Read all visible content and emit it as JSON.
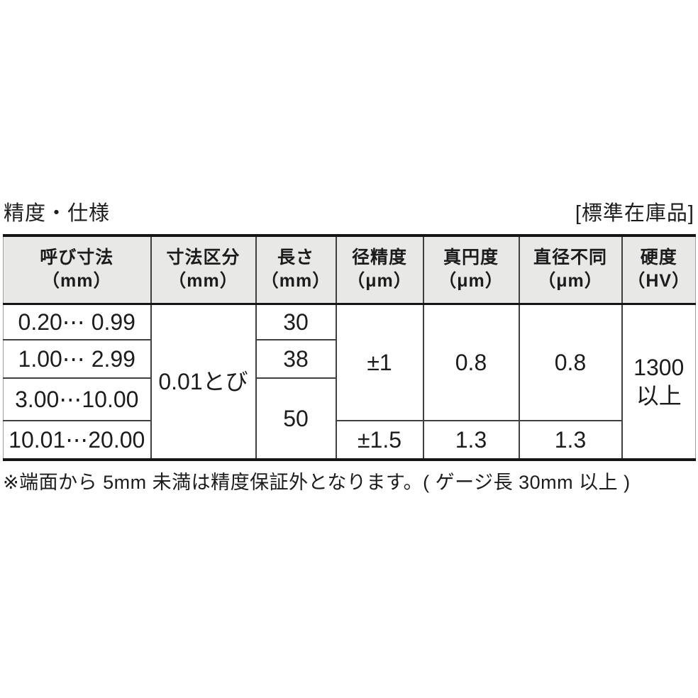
{
  "page": {
    "title": "精度・仕様",
    "stock_label": "[標準在庫品]",
    "footnote": "※端面から 5mm 未満は精度保証外となります。( ゲージ長 30mm 以上 )"
  },
  "table": {
    "columns": [
      {
        "title": "呼び寸法",
        "unit": "（mm）"
      },
      {
        "title": "寸法区分",
        "unit": "（mm）"
      },
      {
        "title": "長さ",
        "unit": "（mm）"
      },
      {
        "title": "径精度",
        "unit": "（μm）"
      },
      {
        "title": "真円度",
        "unit": "（μm）"
      },
      {
        "title": "直径不同",
        "unit": "（μm）"
      },
      {
        "title": "硬度",
        "unit": "（HV）"
      }
    ],
    "body": {
      "nominal_sizes": [
        "0.20⋯ 0.99",
        "1.00⋯ 2.99",
        "3.00⋯10.00",
        "10.01⋯20.00"
      ],
      "size_step": "0.01とび",
      "lengths": [
        "30",
        "38",
        "50"
      ],
      "dia_accuracy": [
        "±1",
        "±1.5"
      ],
      "roundness": [
        "0.8",
        "1.3"
      ],
      "dia_difference": [
        "0.8",
        "1.3"
      ],
      "hardness": [
        "1300",
        "以上"
      ]
    }
  }
}
